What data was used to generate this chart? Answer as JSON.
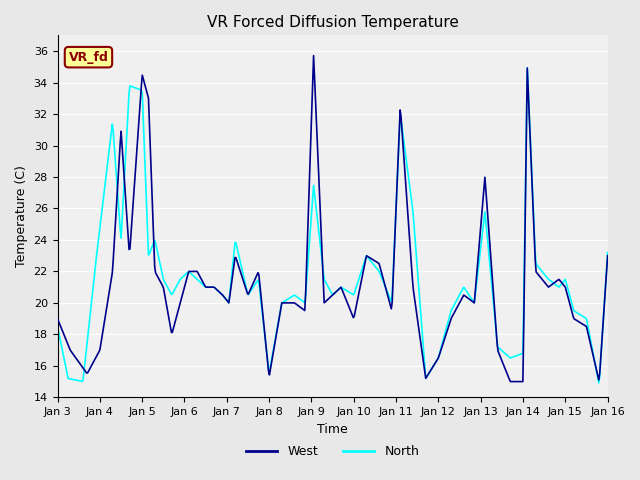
{
  "title": "VR Forced Diffusion Temperature",
  "xlabel": "Time",
  "ylabel": "Temperature (C)",
  "ylim": [
    14,
    37
  ],
  "yticks": [
    14,
    16,
    18,
    20,
    22,
    24,
    26,
    28,
    30,
    32,
    34,
    36
  ],
  "xtick_labels": [
    "Jan 3",
    "Jan 4",
    "Jan 5",
    "Jan 6",
    "Jan 7",
    "Jan 8",
    "Jan 9",
    "Jan 10",
    "Jan 11",
    "Jan 12",
    "Jan 13",
    "Jan 14",
    "Jan 15",
    "Jan 16"
  ],
  "legend_west_color": "#00008B",
  "legend_north_color": "#00FFFF",
  "west_linewidth": 1.2,
  "north_linewidth": 1.2,
  "plot_bg_color": "#F0F0F0",
  "fig_bg_color": "#E8E8E8",
  "annotation_text": "VR_fd",
  "annotation_fg": "#8B0000",
  "annotation_bg": "#FFFF99",
  "annotation_border": "#8B0000",
  "west_cp_t": [
    0,
    0.3,
    0.7,
    1.0,
    1.3,
    1.5,
    1.7,
    2.0,
    2.15,
    2.3,
    2.5,
    2.7,
    2.9,
    3.1,
    3.3,
    3.5,
    3.7,
    3.9,
    4.05,
    4.2,
    4.5,
    4.75,
    5.0,
    5.3,
    5.6,
    5.85,
    6.05,
    6.3,
    6.5,
    6.7,
    7.0,
    7.3,
    7.6,
    7.9,
    8.1,
    8.4,
    8.7,
    9.0,
    9.3,
    9.6,
    9.85,
    10.1,
    10.4,
    10.7,
    11.0,
    11.1,
    11.3,
    11.6,
    11.85,
    12.0,
    12.2,
    12.5,
    12.8,
    13.0
  ],
  "west_cp_v": [
    19,
    17,
    15.5,
    17,
    22,
    31,
    23,
    34.5,
    33,
    22,
    21,
    18,
    20,
    22,
    22,
    21,
    21,
    20.5,
    20,
    23,
    20.5,
    22,
    15.3,
    20,
    20,
    19.5,
    35.8,
    20,
    20.5,
    21,
    19,
    23,
    22.5,
    19.5,
    32.5,
    21,
    15.2,
    16.5,
    19,
    20.5,
    20,
    28,
    17,
    15.0,
    15.0,
    35,
    22,
    21,
    21.5,
    21,
    19,
    18.5,
    15.0,
    23
  ],
  "north_cp_t": [
    0,
    0.25,
    0.6,
    0.9,
    1.3,
    1.5,
    1.7,
    2.0,
    2.15,
    2.3,
    2.5,
    2.7,
    2.9,
    3.1,
    3.3,
    3.5,
    3.7,
    3.9,
    4.05,
    4.2,
    4.5,
    4.75,
    5.0,
    5.3,
    5.6,
    5.85,
    6.05,
    6.3,
    6.5,
    6.7,
    7.0,
    7.3,
    7.6,
    7.9,
    8.1,
    8.4,
    8.7,
    9.0,
    9.3,
    9.6,
    9.85,
    10.1,
    10.4,
    10.7,
    11.0,
    11.1,
    11.3,
    11.6,
    11.85,
    12.0,
    12.2,
    12.5,
    12.8,
    13.0
  ],
  "north_cp_v": [
    18.5,
    15.2,
    15.0,
    22.5,
    31.5,
    24,
    33.8,
    33.5,
    23,
    24,
    21.5,
    20.5,
    21.5,
    22,
    21.5,
    21,
    21,
    20.5,
    20,
    24,
    20.5,
    21.5,
    15.5,
    20,
    20.5,
    20,
    27.5,
    21.5,
    20.5,
    21,
    20.5,
    23,
    22,
    20,
    32,
    25.8,
    15.2,
    16.5,
    19.5,
    21,
    20,
    25.8,
    17.2,
    16.5,
    16.8,
    35,
    22.5,
    21.5,
    21,
    21.5,
    19.5,
    19,
    14.8,
    23.2
  ]
}
